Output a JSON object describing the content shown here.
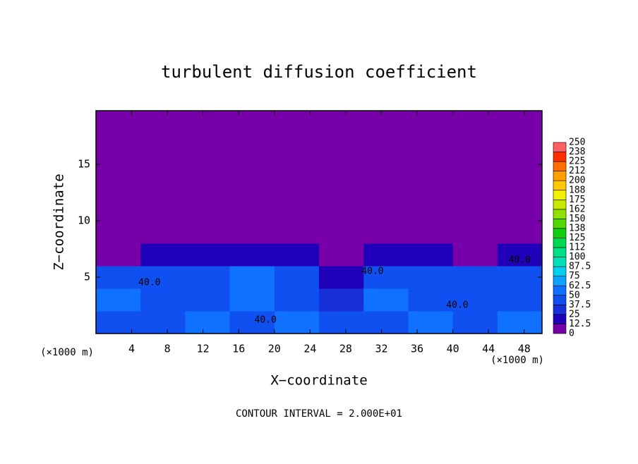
{
  "chart_data": {
    "type": "contour",
    "title": "turbulent diffusion coefficient",
    "x_label": "X−coordinate",
    "y_label": "Z−coordinate",
    "x_unit_left": "(×1000 m)",
    "x_unit_right": "(×1000 m)",
    "footer": "CONTOUR INTERVAL = 2.000E+01",
    "xlim": [
      0,
      50
    ],
    "ylim": [
      0,
      19.75
    ],
    "xticks": [
      4,
      8,
      12,
      16,
      20,
      24,
      28,
      32,
      36,
      40,
      44,
      48
    ],
    "yticks": [
      5,
      10,
      15
    ],
    "x": [
      2.5,
      7.5,
      12.5,
      17.5,
      22.5,
      27.5,
      32.5,
      37.5,
      42.5,
      47.5
    ],
    "z": [
      1,
      3,
      5,
      7,
      9,
      11,
      13,
      15,
      17,
      19
    ],
    "values": [
      [
        45,
        40,
        50,
        45,
        55,
        40,
        45,
        50,
        45,
        50
      ],
      [
        50,
        45,
        45,
        50,
        45,
        30,
        55,
        45,
        40,
        45
      ],
      [
        40,
        40,
        45,
        50,
        45,
        20,
        45,
        40,
        45,
        40
      ],
      [
        10,
        20,
        15,
        20,
        15,
        5,
        15,
        20,
        10,
        15
      ],
      [
        0,
        0,
        0,
        0,
        0,
        0,
        0,
        0,
        0,
        0
      ],
      [
        0,
        0,
        0,
        0,
        0,
        0,
        0,
        0,
        0,
        0
      ],
      [
        0,
        0,
        0,
        0,
        0,
        0,
        0,
        0,
        0,
        0
      ],
      [
        0,
        0,
        0,
        0,
        0,
        0,
        0,
        0,
        0,
        0
      ],
      [
        0,
        0,
        0,
        0,
        0,
        0,
        0,
        0,
        0,
        0
      ],
      [
        0,
        0,
        0,
        0,
        0,
        0,
        0,
        0,
        0,
        0
      ]
    ],
    "levels": [
      0,
      12.5,
      25,
      37.5,
      50,
      62.5,
      75,
      87.5,
      100,
      {
        "value": 112.5,
        "label": "112"
      },
      125,
      {
        "value": 137.5,
        "label": "138"
      },
      150,
      {
        "value": 162.5,
        "label": "162"
      },
      175,
      {
        "value": 187.5,
        "label": "188"
      },
      200,
      {
        "value": 212.5,
        "label": "212"
      },
      225,
      {
        "value": 237.5,
        "label": "238"
      },
      250
    ],
    "colors": [
      "#7800a8",
      "#2000b8",
      "#1830d8",
      "#1050f0",
      "#1070ff",
      "#10a0ff",
      "#00d0f0",
      "#00e0b8",
      "#00e088",
      "#00d850",
      "#10d010",
      "#50d800",
      "#90e000",
      "#c8e800",
      "#f0f000",
      "#ffc800",
      "#ffa000",
      "#ff7000",
      "#ff3000",
      "#ff6060"
    ],
    "annotations": [
      {
        "text": "40.0",
        "x": 19,
        "z": 1.2
      },
      {
        "text": "40.0",
        "x": 31,
        "z": 5.5
      },
      {
        "text": "40.0",
        "x": 40.5,
        "z": 2.5
      },
      {
        "text": "40.0",
        "x": 47.5,
        "z": 6.5
      },
      {
        "text": "40.0",
        "x": 6,
        "z": 4.5
      }
    ]
  }
}
